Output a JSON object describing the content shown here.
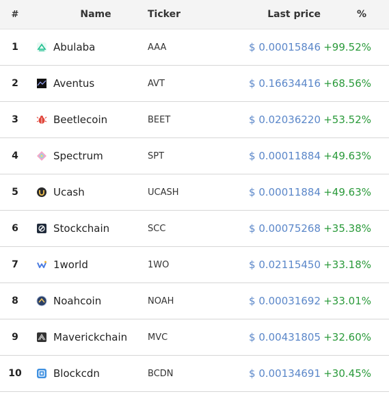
{
  "header": {
    "rank": "#",
    "name": "Name",
    "ticker": "Ticker",
    "last_price": "Last price",
    "percent": "%"
  },
  "colors": {
    "price": "#5b87c9",
    "change_positive": "#2a9a3a",
    "header_bg": "#f4f4f4"
  },
  "rows": [
    {
      "rank": "1",
      "name": "Abulaba",
      "ticker": "AAA",
      "price": "$ 0.00015846",
      "change": "+99.52%",
      "icon": "abulaba-icon"
    },
    {
      "rank": "2",
      "name": "Aventus",
      "ticker": "AVT",
      "price": "$ 0.16634416",
      "change": "+68.56%",
      "icon": "aventus-icon"
    },
    {
      "rank": "3",
      "name": "Beetlecoin",
      "ticker": "BEET",
      "price": "$ 0.02036220",
      "change": "+53.52%",
      "icon": "beetlecoin-icon"
    },
    {
      "rank": "4",
      "name": "Spectrum",
      "ticker": "SPT",
      "price": "$ 0.00011884",
      "change": "+49.63%",
      "icon": "spectrum-icon"
    },
    {
      "rank": "5",
      "name": "Ucash",
      "ticker": "UCASH",
      "price": "$ 0.00011884",
      "change": "+49.63%",
      "icon": "ucash-icon"
    },
    {
      "rank": "6",
      "name": "Stockchain",
      "ticker": "SCC",
      "price": "$ 0.00075268",
      "change": "+35.38%",
      "icon": "stockchain-icon"
    },
    {
      "rank": "7",
      "name": "1world",
      "ticker": "1WO",
      "price": "$ 0.02115450",
      "change": "+33.18%",
      "icon": "1world-icon"
    },
    {
      "rank": "8",
      "name": "Noahcoin",
      "ticker": "NOAH",
      "price": "$ 0.00031692",
      "change": "+33.01%",
      "icon": "noahcoin-icon"
    },
    {
      "rank": "9",
      "name": "Maverickchain",
      "ticker": "MVC",
      "price": "$ 0.00431805",
      "change": "+32.60%",
      "icon": "maverickchain-icon"
    },
    {
      "rank": "10",
      "name": "Blockcdn",
      "ticker": "BCDN",
      "price": "$ 0.00134691",
      "change": "+30.45%",
      "icon": "blockcdn-icon"
    }
  ]
}
